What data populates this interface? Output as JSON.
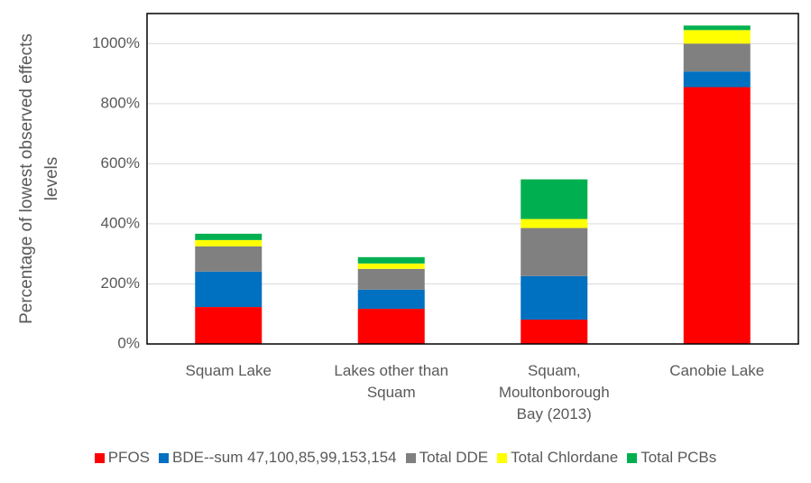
{
  "chart_data": {
    "type": "stacked_bar",
    "y_axis_label": "Percentage of lowest observed effects levels",
    "categories": [
      "Squam Lake",
      "Lakes other than Squam",
      "Squam, Moultonborough Bay (2013)",
      "Canobie Lake"
    ],
    "series": [
      {
        "name": "PFOS",
        "color": "#ff0000",
        "values": [
          123,
          117,
          81,
          855
        ]
      },
      {
        "name": "BDE--sum 47,100,85,99,153,154",
        "color": "#0070c0",
        "values": [
          118,
          64,
          145,
          52
        ]
      },
      {
        "name": "Total DDE",
        "color": "#808080",
        "values": [
          84,
          69,
          160,
          93
        ]
      },
      {
        "name": "Total Chlordane",
        "color": "#ffff00",
        "values": [
          21,
          18,
          30,
          45
        ]
      },
      {
        "name": "Total PCBs",
        "color": "#00b050",
        "values": [
          21,
          21,
          132,
          15
        ]
      }
    ],
    "ylim": [
      0,
      1100
    ],
    "yticks": [
      {
        "value": 0,
        "label": "0%"
      },
      {
        "value": 200,
        "label": "200%"
      },
      {
        "value": 400,
        "label": "400%"
      },
      {
        "value": 600,
        "label": "600%"
      },
      {
        "value": 800,
        "label": "800%"
      },
      {
        "value": 1000,
        "label": "1000%"
      }
    ],
    "grid": true,
    "legend": "bottom"
  }
}
